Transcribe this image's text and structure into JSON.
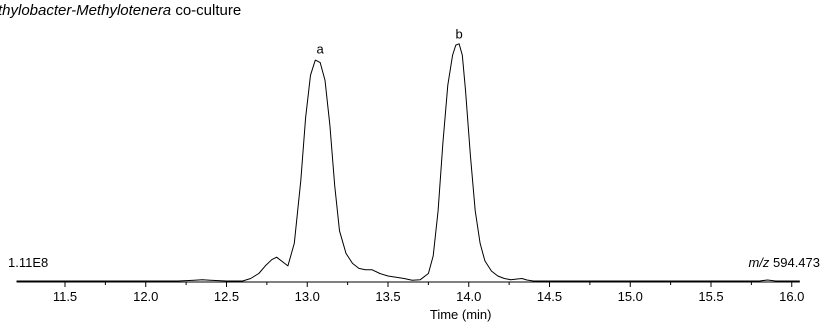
{
  "chart_data": {
    "type": "line",
    "title_italic": "thylobacter-Methylotenera",
    "title_rest": " co-culture",
    "xlabel": "Time (min)",
    "xlim": [
      11.2,
      16.05
    ],
    "xticks": [
      "11.5",
      "12.0",
      "12.5",
      "13.0",
      "13.5",
      "14.0",
      "14.5",
      "15.0",
      "15.5",
      "16.0"
    ],
    "ylim": [
      0,
      1.0
    ],
    "intensity_label": "1.11E8",
    "mz_prefix": "m/z",
    "mz_value": " 594.473",
    "peak_labels": [
      {
        "text": "a",
        "x": 13.08,
        "y": 0.87
      },
      {
        "text": "b",
        "x": 13.94,
        "y": 0.93
      }
    ],
    "series": [
      {
        "x": [
          11.2,
          12.2,
          12.3,
          12.35,
          12.4,
          12.5,
          12.6,
          12.65,
          12.7,
          12.74,
          12.78,
          12.81,
          12.84,
          12.88,
          12.92,
          12.96,
          12.99,
          13.02,
          13.05,
          13.08,
          13.11,
          13.14,
          13.17,
          13.2,
          13.24,
          13.28,
          13.32,
          13.36,
          13.4,
          13.45,
          13.5,
          13.55,
          13.6,
          13.65,
          13.7,
          13.75,
          13.78,
          13.81,
          13.84,
          13.87,
          13.9,
          13.92,
          13.94,
          13.96,
          13.98,
          14.01,
          14.04,
          14.07,
          14.1,
          14.14,
          14.18,
          14.22,
          14.26,
          14.3,
          14.33,
          14.36,
          14.4,
          14.5,
          15.8,
          15.85,
          15.9,
          16.05
        ],
        "y": [
          0.0,
          0.0,
          0.003,
          0.005,
          0.003,
          0.0,
          0.0,
          0.01,
          0.03,
          0.06,
          0.085,
          0.095,
          0.08,
          0.06,
          0.15,
          0.4,
          0.65,
          0.82,
          0.88,
          0.87,
          0.8,
          0.62,
          0.38,
          0.2,
          0.11,
          0.07,
          0.05,
          0.045,
          0.045,
          0.03,
          0.02,
          0.015,
          0.01,
          0.003,
          0.005,
          0.03,
          0.1,
          0.28,
          0.55,
          0.78,
          0.9,
          0.94,
          0.945,
          0.9,
          0.76,
          0.5,
          0.28,
          0.15,
          0.08,
          0.04,
          0.02,
          0.01,
          0.005,
          0.008,
          0.01,
          0.004,
          0.0,
          0.0,
          0.0,
          0.004,
          0.0,
          0.0
        ]
      }
    ]
  }
}
